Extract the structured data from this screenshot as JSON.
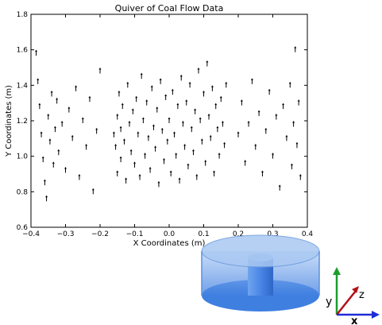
{
  "chart_data": {
    "type": "quiver",
    "title": "Quiver of Coal Flow Data",
    "xlabel": "X Coordinates (m)",
    "ylabel": "Y Coordinates (m)",
    "xlim": [
      -0.4,
      0.4
    ],
    "ylim": [
      0.6,
      1.8
    ],
    "xticks": [
      "−0.4",
      "−0.3",
      "−0.2",
      "−0.1",
      "0.0",
      "0.1",
      "0.2",
      "0.3",
      "0.4"
    ],
    "yticks": [
      "0.6",
      "0.8",
      "1.0",
      "1.2",
      "1.4",
      "1.6",
      "1.8"
    ],
    "grid": false,
    "series": [
      {
        "points": [
          [
            -0.385,
            1.58
          ],
          [
            -0.38,
            1.42
          ],
          [
            -0.375,
            1.28
          ],
          [
            -0.37,
            1.12
          ],
          [
            -0.365,
            0.98
          ],
          [
            -0.36,
            0.85
          ],
          [
            -0.355,
            0.76
          ],
          [
            -0.35,
            1.22
          ],
          [
            -0.345,
            1.08
          ],
          [
            -0.34,
            1.35
          ],
          [
            -0.335,
            0.95
          ],
          [
            -0.33,
            1.15
          ],
          [
            -0.325,
            1.31
          ],
          [
            -0.32,
            1.02
          ],
          [
            -0.31,
            1.18
          ],
          [
            -0.3,
            0.92
          ],
          [
            -0.29,
            1.26
          ],
          [
            -0.28,
            1.1
          ],
          [
            -0.27,
            1.38
          ],
          [
            -0.26,
            0.88
          ],
          [
            -0.25,
            1.2
          ],
          [
            -0.24,
            1.05
          ],
          [
            -0.23,
            1.32
          ],
          [
            -0.22,
            0.8
          ],
          [
            -0.21,
            1.14
          ],
          [
            -0.2,
            1.48
          ],
          [
            -0.16,
            1.12
          ],
          [
            -0.155,
            1.05
          ],
          [
            -0.15,
            1.22
          ],
          [
            -0.15,
            0.9
          ],
          [
            -0.145,
            1.35
          ],
          [
            -0.14,
            1.15
          ],
          [
            -0.14,
            0.98
          ],
          [
            -0.135,
            1.28
          ],
          [
            -0.13,
            1.08
          ],
          [
            -0.125,
            0.86
          ],
          [
            -0.12,
            1.4
          ],
          [
            -0.115,
            1.18
          ],
          [
            -0.11,
            1.02
          ],
          [
            -0.105,
            1.25
          ],
          [
            -0.1,
            0.95
          ],
          [
            -0.095,
            1.32
          ],
          [
            -0.09,
            1.12
          ],
          [
            -0.085,
            0.88
          ],
          [
            -0.08,
            1.45
          ],
          [
            -0.075,
            1.2
          ],
          [
            -0.07,
            1.0
          ],
          [
            -0.065,
            1.3
          ],
          [
            -0.06,
            1.1
          ],
          [
            -0.055,
            0.92
          ],
          [
            -0.05,
            1.38
          ],
          [
            -0.045,
            1.16
          ],
          [
            -0.04,
            1.04
          ],
          [
            -0.035,
            1.26
          ],
          [
            -0.03,
            0.84
          ],
          [
            -0.025,
            1.42
          ],
          [
            -0.02,
            1.14
          ],
          [
            -0.015,
            0.97
          ],
          [
            -0.01,
            1.33
          ],
          [
            -0.005,
            1.08
          ],
          [
            0.0,
            1.2
          ],
          [
            0.005,
            0.9
          ],
          [
            0.01,
            1.36
          ],
          [
            0.015,
            1.12
          ],
          [
            0.02,
            1.0
          ],
          [
            0.025,
            1.28
          ],
          [
            0.03,
            0.86
          ],
          [
            0.035,
            1.44
          ],
          [
            0.04,
            1.18
          ],
          [
            0.045,
            1.05
          ],
          [
            0.05,
            1.3
          ],
          [
            0.055,
            0.94
          ],
          [
            0.06,
            1.4
          ],
          [
            0.065,
            1.15
          ],
          [
            0.07,
            1.02
          ],
          [
            0.075,
            1.25
          ],
          [
            0.08,
            0.88
          ],
          [
            0.085,
            1.48
          ],
          [
            0.09,
            1.2
          ],
          [
            0.095,
            1.08
          ],
          [
            0.1,
            1.35
          ],
          [
            0.105,
            0.96
          ],
          [
            0.11,
            1.52
          ],
          [
            0.115,
            1.22
          ],
          [
            0.12,
            1.1
          ],
          [
            0.125,
            1.38
          ],
          [
            0.13,
            0.9
          ],
          [
            0.135,
            1.28
          ],
          [
            0.14,
            1.15
          ],
          [
            0.145,
            1.0
          ],
          [
            0.15,
            1.32
          ],
          [
            0.155,
            1.18
          ],
          [
            0.16,
            1.06
          ],
          [
            0.165,
            1.4
          ],
          [
            0.2,
            1.12
          ],
          [
            0.21,
            1.3
          ],
          [
            0.22,
            0.96
          ],
          [
            0.23,
            1.18
          ],
          [
            0.24,
            1.42
          ],
          [
            0.25,
            1.05
          ],
          [
            0.26,
            1.24
          ],
          [
            0.27,
            0.9
          ],
          [
            0.28,
            1.14
          ],
          [
            0.29,
            1.36
          ],
          [
            0.3,
            1.0
          ],
          [
            0.31,
            1.22
          ],
          [
            0.32,
            0.82
          ],
          [
            0.33,
            1.28
          ],
          [
            0.34,
            1.1
          ],
          [
            0.35,
            1.4
          ],
          [
            0.355,
            0.94
          ],
          [
            0.36,
            1.18
          ],
          [
            0.365,
            1.6
          ],
          [
            0.37,
            1.06
          ],
          [
            0.375,
            1.3
          ],
          [
            0.38,
            0.88
          ]
        ]
      }
    ]
  },
  "diagram": {
    "axis_x_label": "x",
    "axis_y_label": "y",
    "axis_z_label": "z",
    "colors": {
      "cylinder_fill": "#4f8fe8",
      "cylinder_light": "#a9c8f2",
      "x_axis": "#1f2bd6",
      "y_axis": "#1a9e2c",
      "z_axis": "#b31217"
    }
  }
}
